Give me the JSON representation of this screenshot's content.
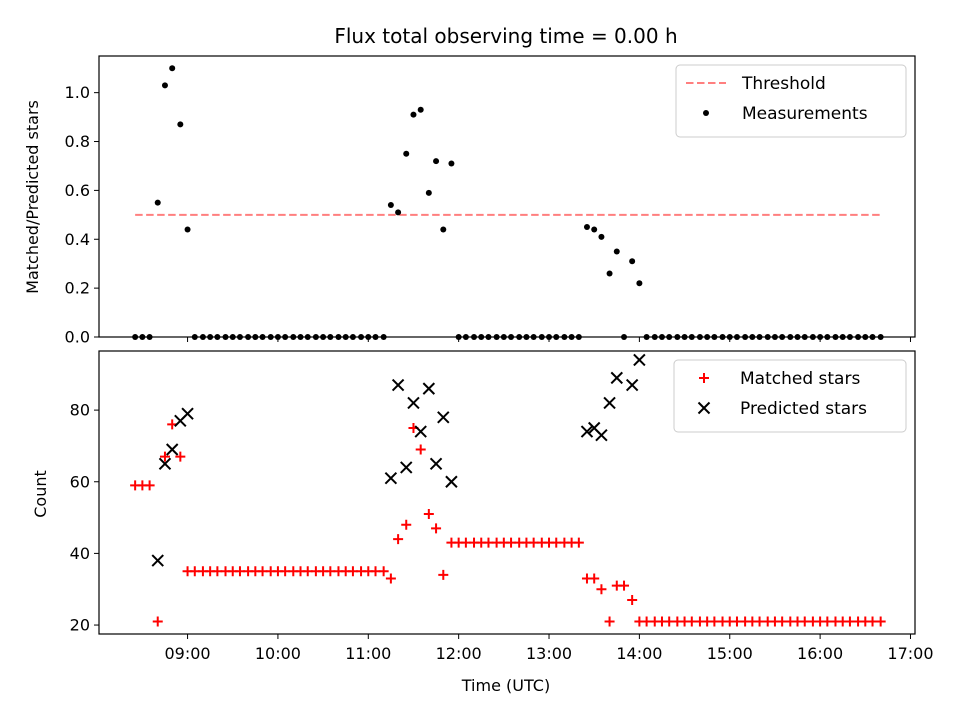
{
  "chart_data": [
    {
      "type": "scatter",
      "title": "Flux total observing time = 0.00 h",
      "xlabel": "",
      "ylabel": "Matched/Predicted stars",
      "xlim": [
        8.02,
        17.05
      ],
      "ylim": [
        0.0,
        1.15
      ],
      "yticks": [
        0.0,
        0.2,
        0.4,
        0.6,
        0.8,
        1.0
      ],
      "ytick_labels": [
        "0.0",
        "0.2",
        "0.4",
        "0.6",
        "0.8",
        "1.0"
      ],
      "grid": false,
      "legend": "top-right",
      "threshold": {
        "name": "Threshold",
        "value": 0.5,
        "x_range": [
          8.42,
          16.67
        ],
        "color": "#ff7f7f"
      },
      "series": [
        {
          "name": "Measurements",
          "color": "#000000",
          "marker": "dot",
          "x": [
            8.42,
            8.5,
            8.58,
            8.67,
            8.75,
            8.83,
            8.92,
            9.0,
            9.08,
            9.17,
            9.25,
            9.33,
            9.42,
            9.5,
            9.58,
            9.67,
            9.75,
            9.83,
            9.92,
            10.0,
            10.08,
            10.17,
            10.25,
            10.33,
            10.42,
            10.5,
            10.58,
            10.67,
            10.75,
            10.83,
            10.92,
            11.0,
            11.08,
            11.17,
            11.25,
            11.33,
            11.42,
            11.5,
            11.58,
            11.67,
            11.75,
            11.83,
            11.92,
            12.0,
            12.08,
            12.17,
            12.25,
            12.33,
            12.42,
            12.5,
            12.58,
            12.67,
            12.75,
            12.83,
            12.92,
            13.0,
            13.08,
            13.17,
            13.25,
            13.33,
            13.42,
            13.5,
            13.58,
            13.67,
            13.75,
            13.83,
            13.92,
            14.0,
            14.08,
            14.17,
            14.25,
            14.33,
            14.42,
            14.5,
            14.58,
            14.67,
            14.75,
            14.83,
            14.92,
            15.0,
            15.08,
            15.17,
            15.25,
            15.33,
            15.42,
            15.5,
            15.58,
            15.67,
            15.75,
            15.83,
            15.92,
            16.0,
            16.08,
            16.17,
            16.25,
            16.33,
            16.42,
            16.5,
            16.58,
            16.67
          ],
          "y": [
            0,
            0,
            0,
            0.55,
            1.03,
            1.1,
            0.87,
            0.44,
            0,
            0,
            0,
            0,
            0,
            0,
            0,
            0,
            0,
            0,
            0,
            0,
            0,
            0,
            0,
            0,
            0,
            0,
            0,
            0,
            0,
            0,
            0,
            0,
            0,
            0,
            0.54,
            0.51,
            0.75,
            0.91,
            0.93,
            0.59,
            0.72,
            0.44,
            0.71,
            0,
            0,
            0,
            0,
            0,
            0,
            0,
            0,
            0,
            0,
            0,
            0,
            0,
            0,
            0,
            0,
            0,
            0.45,
            0.44,
            0.41,
            0.26,
            0.35,
            0,
            0.31,
            0.22,
            0,
            0,
            0,
            0,
            0,
            0,
            0,
            0,
            0,
            0,
            0,
            0,
            0,
            0,
            0,
            0,
            0,
            0,
            0,
            0,
            0,
            0,
            0,
            0,
            0,
            0,
            0,
            0,
            0,
            0,
            0,
            0
          ]
        }
      ]
    },
    {
      "type": "scatter",
      "title": "",
      "xlabel": "Time (UTC)",
      "ylabel": "Count",
      "xlim": [
        8.02,
        17.05
      ],
      "ylim": [
        17.5,
        96.5
      ],
      "xticks": [
        9,
        10,
        11,
        12,
        13,
        14,
        15,
        16,
        17
      ],
      "xtick_labels": [
        "09:00",
        "10:00",
        "11:00",
        "12:00",
        "13:00",
        "14:00",
        "15:00",
        "16:00",
        "17:00"
      ],
      "yticks": [
        20,
        40,
        60,
        80
      ],
      "ytick_labels": [
        "20",
        "40",
        "60",
        "80"
      ],
      "grid": false,
      "legend": "top-right",
      "series": [
        {
          "name": "Matched stars",
          "color": "#ff0000",
          "marker": "plus",
          "x": [
            8.42,
            8.5,
            8.58,
            8.67,
            8.75,
            8.83,
            8.92,
            9.0,
            9.08,
            9.17,
            9.25,
            9.33,
            9.42,
            9.5,
            9.58,
            9.67,
            9.75,
            9.83,
            9.92,
            10.0,
            10.08,
            10.17,
            10.25,
            10.33,
            10.42,
            10.5,
            10.58,
            10.67,
            10.75,
            10.83,
            10.92,
            11.0,
            11.08,
            11.17,
            11.25,
            11.33,
            11.42,
            11.5,
            11.58,
            11.67,
            11.75,
            11.83,
            11.92,
            12.0,
            12.08,
            12.17,
            12.25,
            12.33,
            12.42,
            12.5,
            12.58,
            12.67,
            12.75,
            12.83,
            12.92,
            13.0,
            13.08,
            13.17,
            13.25,
            13.33,
            13.42,
            13.5,
            13.58,
            13.67,
            13.75,
            13.83,
            13.92,
            14.0,
            14.08,
            14.17,
            14.25,
            14.33,
            14.42,
            14.5,
            14.58,
            14.67,
            14.75,
            14.83,
            14.92,
            15.0,
            15.08,
            15.17,
            15.25,
            15.33,
            15.42,
            15.5,
            15.58,
            15.67,
            15.75,
            15.83,
            15.92,
            16.0,
            16.08,
            16.17,
            16.25,
            16.33,
            16.42,
            16.5,
            16.58,
            16.67
          ],
          "y": [
            59,
            59,
            59,
            21,
            67,
            76,
            67,
            35,
            35,
            35,
            35,
            35,
            35,
            35,
            35,
            35,
            35,
            35,
            35,
            35,
            35,
            35,
            35,
            35,
            35,
            35,
            35,
            35,
            35,
            35,
            35,
            35,
            35,
            35,
            33,
            44,
            48,
            75,
            69,
            51,
            47,
            34,
            43,
            43,
            43,
            43,
            43,
            43,
            43,
            43,
            43,
            43,
            43,
            43,
            43,
            43,
            43,
            43,
            43,
            43,
            33,
            33,
            30,
            21,
            31,
            31,
            27,
            21,
            21,
            21,
            21,
            21,
            21,
            21,
            21,
            21,
            21,
            21,
            21,
            21,
            21,
            21,
            21,
            21,
            21,
            21,
            21,
            21,
            21,
            21,
            21,
            21,
            21,
            21,
            21,
            21,
            21,
            21,
            21,
            21
          ]
        },
        {
          "name": "Predicted stars",
          "color": "#000000",
          "marker": "x",
          "x": [
            8.67,
            8.75,
            8.83,
            8.92,
            9.0,
            11.25,
            11.33,
            11.42,
            11.5,
            11.58,
            11.67,
            11.75,
            11.83,
            11.92,
            13.42,
            13.5,
            13.58,
            13.67,
            13.75,
            13.92,
            14.0
          ],
          "y": [
            38,
            65,
            69,
            77,
            79,
            61,
            87,
            64,
            82,
            74,
            86,
            65,
            78,
            60,
            74,
            75,
            73,
            82,
            89,
            87,
            94
          ]
        }
      ]
    }
  ]
}
